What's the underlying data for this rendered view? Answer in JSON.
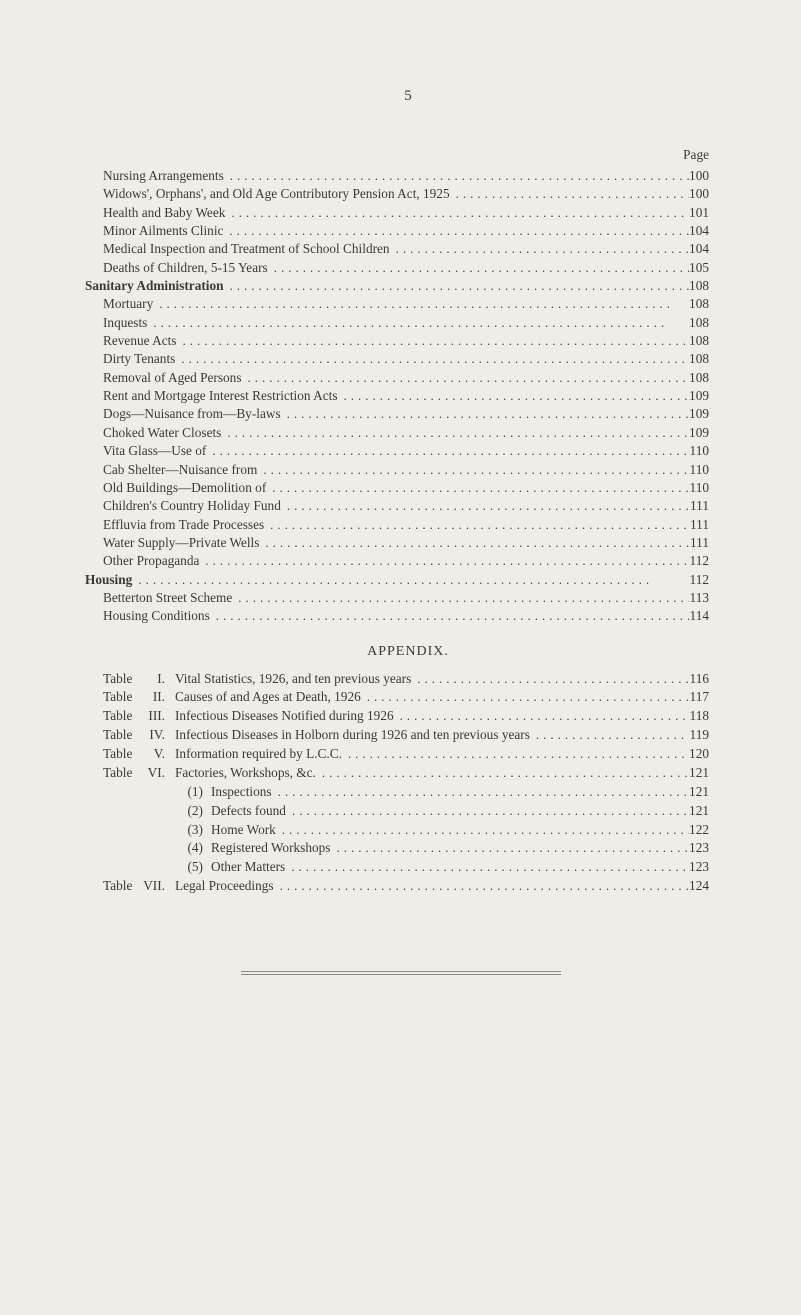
{
  "page_number": "5",
  "page_header": "Page",
  "toc": [
    {
      "label": "Nursing Arrangements",
      "page": "100",
      "indent": 1
    },
    {
      "label": "Widows', Orphans', and Old Age Contributory Pension Act, 1925",
      "page": "100",
      "indent": 1
    },
    {
      "label": "Health and Baby Week",
      "page": "101",
      "indent": 1
    },
    {
      "label": "Minor Ailments Clinic",
      "page": "104",
      "indent": 1
    },
    {
      "label": "Medical Inspection and Treatment of School Children",
      "page": "104",
      "indent": 1
    },
    {
      "label": "Deaths of Children, 5-15 Years",
      "page": "105",
      "indent": 1
    },
    {
      "label": "Sanitary Administration",
      "page": "108",
      "indent": 0,
      "section": true
    },
    {
      "label": "Mortuary",
      "page": "108",
      "indent": 1
    },
    {
      "label": "Inquests",
      "page": "108",
      "indent": 1
    },
    {
      "label": "Revenue Acts",
      "page": "108",
      "indent": 1
    },
    {
      "label": "Dirty Tenants",
      "page": "108",
      "indent": 1
    },
    {
      "label": "Removal of Aged Persons",
      "page": "108",
      "indent": 1
    },
    {
      "label": "Rent and Mortgage Interest Restriction Acts",
      "page": "109",
      "indent": 1
    },
    {
      "label": "Dogs—Nuisance from—By-laws",
      "page": "109",
      "indent": 1
    },
    {
      "label": "Choked Water Closets",
      "page": "109",
      "indent": 1
    },
    {
      "label": "Vita Glass—Use of",
      "page": "110",
      "indent": 1
    },
    {
      "label": "Cab Shelter—Nuisance from",
      "page": "110",
      "indent": 1
    },
    {
      "label": "Old Buildings—Demolition of",
      "page": "110",
      "indent": 1
    },
    {
      "label": "Children's Country Holiday Fund",
      "page": "111",
      "indent": 1
    },
    {
      "label": "Effluvia from Trade Processes",
      "page": "111",
      "indent": 1
    },
    {
      "label": "Water Supply—Private Wells",
      "page": "111",
      "indent": 1
    },
    {
      "label": "Other Propaganda",
      "page": "112",
      "indent": 1
    },
    {
      "label": "Housing",
      "page": "112",
      "indent": 0,
      "section": true
    },
    {
      "label": "Betterton Street Scheme",
      "page": "113",
      "indent": 1
    },
    {
      "label": "Housing Conditions",
      "page": "114",
      "indent": 1
    }
  ],
  "appendix_title": "APPENDIX.",
  "appendix": [
    {
      "tname": "Table",
      "tnum": "I.",
      "desc": "Vital Statistics, 1926, and ten previous years",
      "page": "116"
    },
    {
      "tname": "Table",
      "tnum": "II.",
      "desc": "Causes of and Ages at Death, 1926",
      "page": "117"
    },
    {
      "tname": "Table",
      "tnum": "III.",
      "desc": "Infectious Diseases Notified during 1926",
      "page": "118"
    },
    {
      "tname": "Table",
      "tnum": "IV.",
      "desc": "Infectious Diseases in Holborn during 1926 and ten previous years",
      "page": "119"
    },
    {
      "tname": "Table",
      "tnum": "V.",
      "desc": "Information required by L.C.C.",
      "page": "120"
    },
    {
      "tname": "Table",
      "tnum": "VI.",
      "desc": "Factories, Workshops, &c.",
      "page": "121"
    }
  ],
  "sub_appendix": [
    {
      "num": "(1)",
      "desc": "Inspections",
      "page": "121"
    },
    {
      "num": "(2)",
      "desc": "Defects found",
      "page": "121"
    },
    {
      "num": "(3)",
      "desc": "Home Work",
      "page": "122"
    },
    {
      "num": "(4)",
      "desc": "Registered Workshops",
      "page": "123"
    },
    {
      "num": "(5)",
      "desc": "Other Matters",
      "page": "123"
    }
  ],
  "appendix_last": {
    "tname": "Table",
    "tnum": "VII.",
    "desc": "Legal Proceedings",
    "page": "124"
  },
  "colors": {
    "page_bg": "#f0ede6",
    "text": "#3a3a35",
    "rule": "#888888"
  },
  "dots_string": "......................................................................."
}
